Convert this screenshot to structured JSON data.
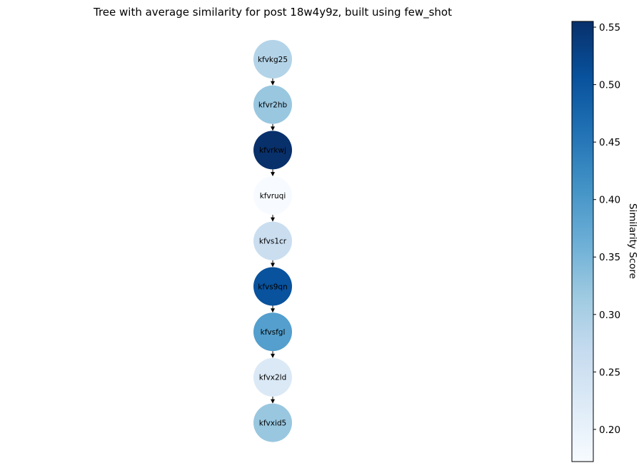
{
  "chart_data": {
    "type": "tree",
    "title": "Tree with average similarity for post 18w4y9z, built using few_shot",
    "nodes": [
      {
        "id": "kfvkg25",
        "similarity": 0.29
      },
      {
        "id": "kfvr2hb",
        "similarity": 0.32
      },
      {
        "id": "kfvrkwj",
        "similarity": 0.555
      },
      {
        "id": "kfvruqi",
        "similarity": 0.172
      },
      {
        "id": "kfvs1cr",
        "similarity": 0.26
      },
      {
        "id": "kfvs9qn",
        "similarity": 0.505
      },
      {
        "id": "kfvsfgl",
        "similarity": 0.39
      },
      {
        "id": "kfvx2ld",
        "similarity": 0.225
      },
      {
        "id": "kfvxid5",
        "similarity": 0.32
      }
    ],
    "edges": [
      [
        "kfvkg25",
        "kfvr2hb"
      ],
      [
        "kfvr2hb",
        "kfvrkwj"
      ],
      [
        "kfvrkwj",
        "kfvruqi"
      ],
      [
        "kfvruqi",
        "kfvs1cr"
      ],
      [
        "kfvs1cr",
        "kfvs9qn"
      ],
      [
        "kfvs9qn",
        "kfvsfgl"
      ],
      [
        "kfvsfgl",
        "kfvx2ld"
      ],
      [
        "kfvx2ld",
        "kfvxid5"
      ]
    ],
    "colorbar": {
      "label": "Similarity Score",
      "min": 0.172,
      "max": 0.555,
      "colormap": "Blues",
      "ticks": [
        0.2,
        0.25,
        0.3,
        0.35,
        0.4,
        0.45,
        0.5,
        0.55
      ],
      "tick_labels": [
        "0.20",
        "0.25",
        "0.30",
        "0.35",
        "0.40",
        "0.45",
        "0.50",
        "0.55"
      ]
    }
  }
}
